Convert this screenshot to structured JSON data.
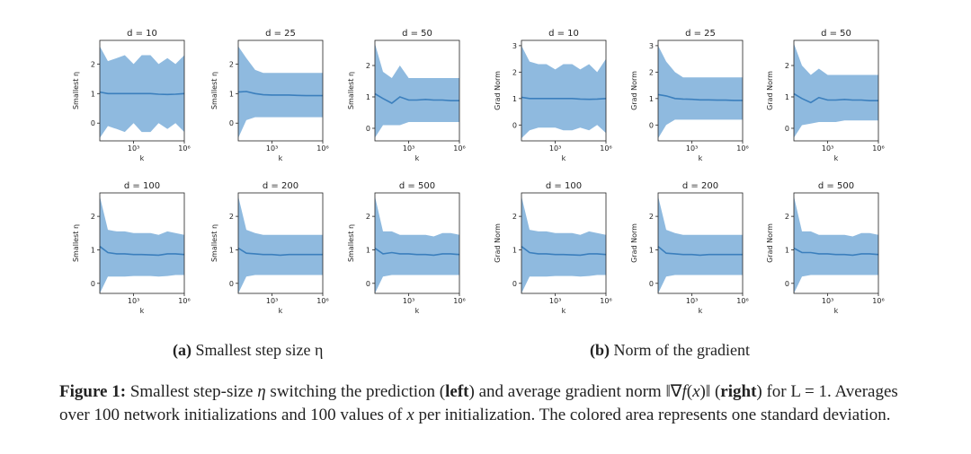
{
  "chart_data": [
    {
      "type": "area",
      "group": "a",
      "title": "d = 10",
      "xlabel": "k",
      "ylabel": "Smallest η",
      "xtick_labels": [
        "10³",
        "10⁶"
      ],
      "yticks": [
        0,
        1,
        2
      ],
      "ylim": [
        -0.6,
        2.8
      ],
      "x": [
        10,
        30,
        100,
        300,
        1000,
        3000,
        10000,
        30000,
        100000,
        300000,
        1000000
      ],
      "mean": [
        1.05,
        1.0,
        1.0,
        1.0,
        1.0,
        1.0,
        1.0,
        0.98,
        0.97,
        0.98,
        1.0
      ],
      "upper": [
        2.6,
        2.1,
        2.2,
        2.3,
        2.0,
        2.3,
        2.3,
        2.0,
        2.2,
        2.0,
        2.3
      ],
      "lower": [
        -0.5,
        -0.1,
        -0.2,
        -0.3,
        0.0,
        -0.3,
        -0.3,
        0.0,
        -0.2,
        0.0,
        -0.3
      ]
    },
    {
      "type": "area",
      "group": "a",
      "title": "d = 25",
      "xlabel": "k",
      "ylabel": "Smallest η",
      "xtick_labels": [
        "10³",
        "10⁶"
      ],
      "yticks": [
        0,
        1,
        2
      ],
      "ylim": [
        -0.6,
        2.8
      ],
      "x": [
        10,
        30,
        100,
        300,
        1000,
        3000,
        10000,
        30000,
        100000,
        300000,
        1000000
      ],
      "mean": [
        1.05,
        1.07,
        1.0,
        0.96,
        0.95,
        0.95,
        0.95,
        0.94,
        0.93,
        0.93,
        0.93
      ],
      "upper": [
        2.6,
        2.2,
        1.8,
        1.7,
        1.7,
        1.7,
        1.7,
        1.7,
        1.7,
        1.7,
        1.7
      ],
      "lower": [
        -0.5,
        0.1,
        0.2,
        0.2,
        0.2,
        0.2,
        0.2,
        0.2,
        0.2,
        0.2,
        0.2
      ]
    },
    {
      "type": "area",
      "group": "a",
      "title": "d = 50",
      "xlabel": "k",
      "ylabel": "Smallest η",
      "xtick_labels": [
        "10³",
        "10⁶"
      ],
      "yticks": [
        0,
        1,
        2
      ],
      "ylim": [
        -0.4,
        2.8
      ],
      "x": [
        10,
        30,
        100,
        300,
        1000,
        3000,
        10000,
        30000,
        100000,
        300000,
        1000000
      ],
      "mean": [
        1.1,
        0.95,
        0.8,
        1.0,
        0.9,
        0.9,
        0.92,
        0.9,
        0.9,
        0.88,
        0.88
      ],
      "upper": [
        2.7,
        1.8,
        1.6,
        2.0,
        1.6,
        1.6,
        1.6,
        1.6,
        1.6,
        1.6,
        1.6
      ],
      "lower": [
        -0.3,
        0.1,
        0.1,
        0.1,
        0.2,
        0.2,
        0.2,
        0.2,
        0.2,
        0.2,
        0.2
      ]
    },
    {
      "type": "area",
      "group": "b",
      "title": "d = 10",
      "xlabel": "k",
      "ylabel": "Grad Norm",
      "xtick_labels": [
        "10³",
        "10⁶"
      ],
      "yticks": [
        0,
        1,
        2,
        3
      ],
      "ylim": [
        -0.6,
        3.2
      ],
      "x": [
        10,
        30,
        100,
        300,
        1000,
        3000,
        10000,
        30000,
        100000,
        300000,
        1000000
      ],
      "mean": [
        1.05,
        1.0,
        1.0,
        1.0,
        1.0,
        1.0,
        1.0,
        0.98,
        0.97,
        0.98,
        1.0
      ],
      "upper": [
        3.0,
        2.4,
        2.3,
        2.3,
        2.1,
        2.3,
        2.3,
        2.1,
        2.3,
        2.0,
        2.5
      ],
      "lower": [
        -0.5,
        -0.2,
        -0.1,
        -0.1,
        -0.1,
        -0.2,
        -0.2,
        -0.1,
        -0.2,
        0.0,
        -0.3
      ]
    },
    {
      "type": "area",
      "group": "b",
      "title": "d = 25",
      "xlabel": "k",
      "ylabel": "Grad Norm",
      "xtick_labels": [
        "10³",
        "10⁶"
      ],
      "yticks": [
        0,
        1,
        2,
        3
      ],
      "ylim": [
        -0.6,
        3.2
      ],
      "x": [
        10,
        30,
        100,
        300,
        1000,
        3000,
        10000,
        30000,
        100000,
        300000,
        1000000
      ],
      "mean": [
        1.15,
        1.1,
        1.0,
        0.98,
        0.97,
        0.95,
        0.95,
        0.94,
        0.94,
        0.93,
        0.93
      ],
      "upper": [
        3.0,
        2.4,
        2.0,
        1.8,
        1.8,
        1.8,
        1.8,
        1.8,
        1.8,
        1.8,
        1.8
      ],
      "lower": [
        -0.5,
        0.0,
        0.2,
        0.2,
        0.2,
        0.2,
        0.2,
        0.2,
        0.2,
        0.2,
        0.2
      ]
    },
    {
      "type": "area",
      "group": "b",
      "title": "d = 50",
      "xlabel": "k",
      "ylabel": "Grad Norm",
      "xtick_labels": [
        "10³",
        "10⁶"
      ],
      "yticks": [
        0,
        1,
        2
      ],
      "ylim": [
        -0.4,
        2.8
      ],
      "x": [
        10,
        30,
        100,
        300,
        1000,
        3000,
        10000,
        30000,
        100000,
        300000,
        1000000
      ],
      "mean": [
        1.1,
        0.95,
        0.82,
        0.98,
        0.9,
        0.9,
        0.92,
        0.9,
        0.9,
        0.88,
        0.88
      ],
      "upper": [
        2.7,
        2.0,
        1.7,
        1.9,
        1.7,
        1.7,
        1.7,
        1.7,
        1.7,
        1.7,
        1.7
      ],
      "lower": [
        -0.3,
        0.1,
        0.15,
        0.2,
        0.2,
        0.2,
        0.25,
        0.25,
        0.25,
        0.25,
        0.25
      ]
    },
    {
      "type": "area",
      "group": "a",
      "title": "d = 100",
      "xlabel": "k",
      "ylabel": "Smallest η",
      "xtick_labels": [
        "10³",
        "10⁶"
      ],
      "yticks": [
        0,
        1,
        2
      ],
      "ylim": [
        -0.3,
        2.7
      ],
      "x": [
        10,
        30,
        100,
        300,
        1000,
        3000,
        10000,
        30000,
        100000,
        300000,
        1000000
      ],
      "mean": [
        1.1,
        0.92,
        0.88,
        0.88,
        0.86,
        0.86,
        0.85,
        0.84,
        0.88,
        0.88,
        0.86
      ],
      "upper": [
        2.6,
        1.6,
        1.55,
        1.55,
        1.5,
        1.5,
        1.5,
        1.45,
        1.55,
        1.5,
        1.45
      ],
      "lower": [
        -0.3,
        0.2,
        0.2,
        0.2,
        0.22,
        0.22,
        0.22,
        0.2,
        0.22,
        0.25,
        0.25
      ]
    },
    {
      "type": "area",
      "group": "a",
      "title": "d = 200",
      "xlabel": "k",
      "ylabel": "Smallest η",
      "xtick_labels": [
        "10³",
        "10⁶"
      ],
      "yticks": [
        0,
        1,
        2
      ],
      "ylim": [
        -0.3,
        2.7
      ],
      "x": [
        10,
        30,
        100,
        300,
        1000,
        3000,
        10000,
        30000,
        100000,
        300000,
        1000000
      ],
      "mean": [
        1.05,
        0.9,
        0.88,
        0.86,
        0.86,
        0.84,
        0.86,
        0.86,
        0.86,
        0.86,
        0.86
      ],
      "upper": [
        2.6,
        1.6,
        1.5,
        1.45,
        1.45,
        1.45,
        1.45,
        1.45,
        1.45,
        1.45,
        1.45
      ],
      "lower": [
        -0.3,
        0.2,
        0.25,
        0.25,
        0.25,
        0.25,
        0.25,
        0.25,
        0.25,
        0.25,
        0.25
      ]
    },
    {
      "type": "area",
      "group": "a",
      "title": "d = 500",
      "xlabel": "k",
      "ylabel": "Smallest η",
      "xtick_labels": [
        "10³",
        "10⁶"
      ],
      "yticks": [
        0,
        1,
        2
      ],
      "ylim": [
        -0.3,
        2.7
      ],
      "x": [
        10,
        30,
        100,
        300,
        1000,
        3000,
        10000,
        30000,
        100000,
        300000,
        1000000
      ],
      "mean": [
        1.05,
        0.88,
        0.92,
        0.88,
        0.88,
        0.86,
        0.86,
        0.84,
        0.88,
        0.88,
        0.86
      ],
      "upper": [
        2.6,
        1.55,
        1.55,
        1.45,
        1.45,
        1.45,
        1.45,
        1.4,
        1.5,
        1.5,
        1.45
      ],
      "lower": [
        -0.3,
        0.2,
        0.25,
        0.25,
        0.25,
        0.25,
        0.25,
        0.25,
        0.25,
        0.25,
        0.25
      ]
    },
    {
      "type": "area",
      "group": "b",
      "title": "d = 100",
      "xlabel": "k",
      "ylabel": "Grad Norm",
      "xtick_labels": [
        "10³",
        "10⁶"
      ],
      "yticks": [
        0,
        1,
        2
      ],
      "ylim": [
        -0.3,
        2.7
      ],
      "x": [
        10,
        30,
        100,
        300,
        1000,
        3000,
        10000,
        30000,
        100000,
        300000,
        1000000
      ],
      "mean": [
        1.1,
        0.92,
        0.88,
        0.88,
        0.86,
        0.86,
        0.85,
        0.84,
        0.88,
        0.88,
        0.86
      ],
      "upper": [
        2.6,
        1.6,
        1.55,
        1.55,
        1.5,
        1.5,
        1.5,
        1.45,
        1.55,
        1.5,
        1.45
      ],
      "lower": [
        -0.3,
        0.2,
        0.2,
        0.2,
        0.22,
        0.22,
        0.22,
        0.2,
        0.22,
        0.25,
        0.25
      ]
    },
    {
      "type": "area",
      "group": "b",
      "title": "d = 200",
      "xlabel": "k",
      "ylabel": "Grad Norm",
      "xtick_labels": [
        "10³",
        "10⁶"
      ],
      "yticks": [
        0,
        1,
        2
      ],
      "ylim": [
        -0.3,
        2.7
      ],
      "x": [
        10,
        30,
        100,
        300,
        1000,
        3000,
        10000,
        30000,
        100000,
        300000,
        1000000
      ],
      "mean": [
        1.1,
        0.9,
        0.88,
        0.86,
        0.86,
        0.84,
        0.86,
        0.86,
        0.86,
        0.86,
        0.86
      ],
      "upper": [
        2.6,
        1.6,
        1.5,
        1.45,
        1.45,
        1.45,
        1.45,
        1.45,
        1.45,
        1.45,
        1.45
      ],
      "lower": [
        -0.3,
        0.2,
        0.25,
        0.25,
        0.25,
        0.25,
        0.25,
        0.25,
        0.25,
        0.25,
        0.25
      ]
    },
    {
      "type": "area",
      "group": "b",
      "title": "d = 500",
      "xlabel": "k",
      "ylabel": "Grad Norm",
      "xtick_labels": [
        "10³",
        "10⁶"
      ],
      "yticks": [
        0,
        1,
        2
      ],
      "ylim": [
        -0.3,
        2.7
      ],
      "x": [
        10,
        30,
        100,
        300,
        1000,
        3000,
        10000,
        30000,
        100000,
        300000,
        1000000
      ],
      "mean": [
        1.05,
        0.92,
        0.92,
        0.88,
        0.88,
        0.86,
        0.86,
        0.84,
        0.88,
        0.88,
        0.86
      ],
      "upper": [
        2.6,
        1.55,
        1.55,
        1.45,
        1.45,
        1.45,
        1.45,
        1.4,
        1.5,
        1.5,
        1.45
      ],
      "lower": [
        -0.3,
        0.2,
        0.25,
        0.25,
        0.25,
        0.25,
        0.25,
        0.25,
        0.25,
        0.25,
        0.25
      ]
    }
  ],
  "colors": {
    "band": "#8fbadf",
    "line": "#3b7fbd",
    "axis": "#222222"
  },
  "subcaptions": {
    "a_tag": "(a)",
    "a_text": "Smallest step size η",
    "b_tag": "(b)",
    "b_text": "Norm of the gradient"
  },
  "caption": {
    "label": "Figure 1:",
    "part1": "Smallest step-size ",
    "eta": "η",
    "part2": " switching the prediction (",
    "left": "left",
    "part3": ") and average gradient norm ‖∇",
    "fx": "f",
    "part4": "(",
    "x1": "x",
    "part5": ")‖ (",
    "right": "right",
    "part6": ") for L = 1. Averages over 100 network initializations and 100 values of ",
    "x2": "x",
    "part7": " per initialization. The colored area represents one standard deviation."
  }
}
